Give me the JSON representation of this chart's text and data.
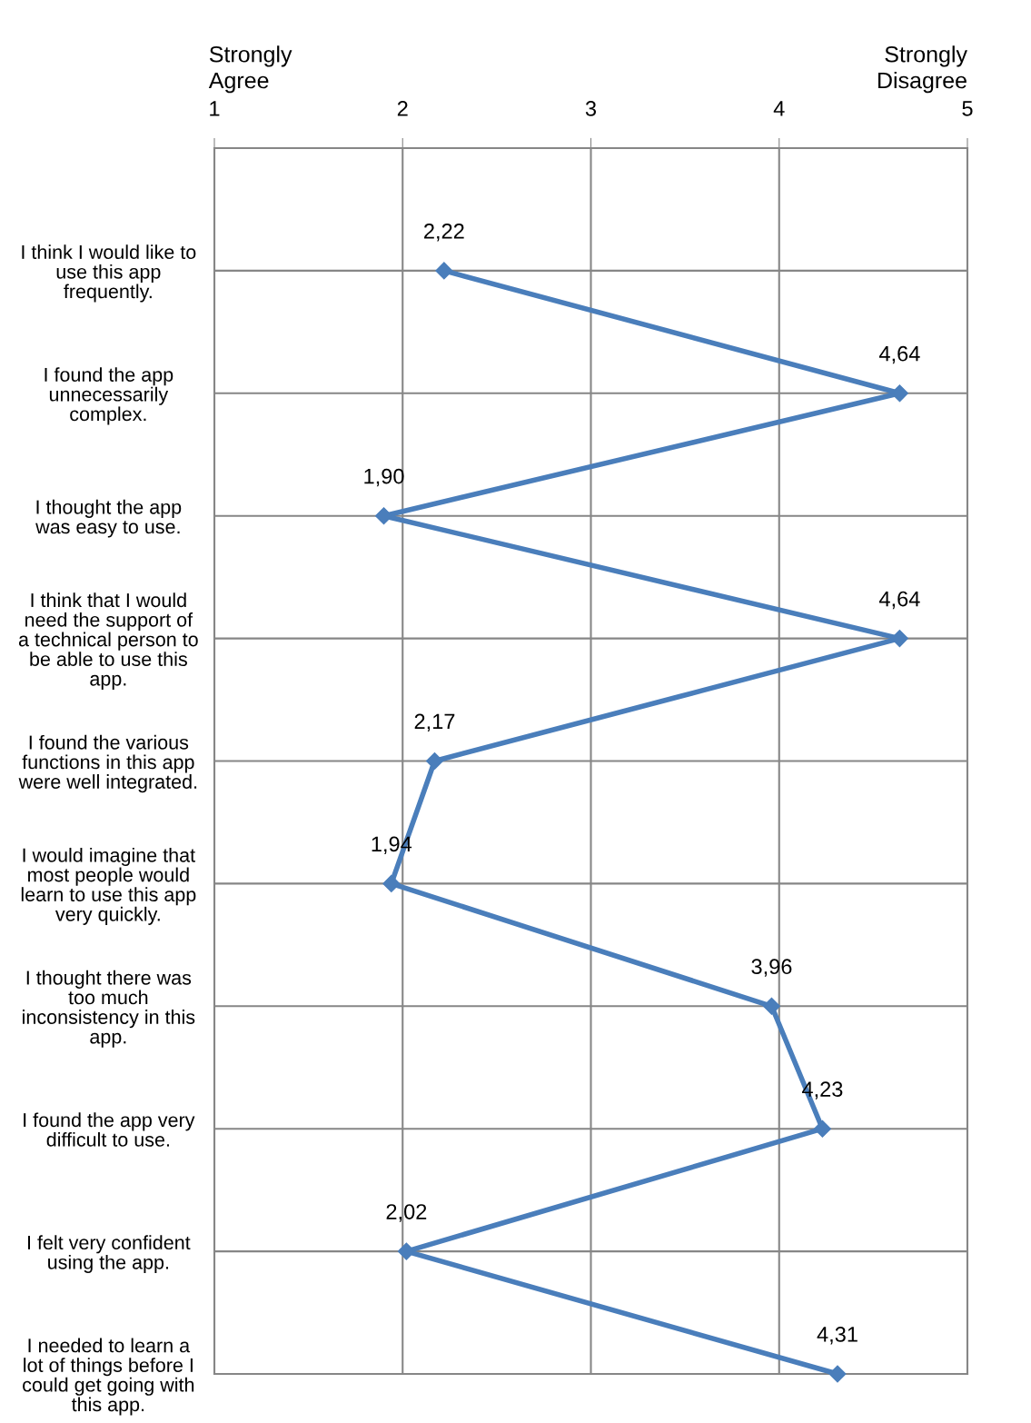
{
  "chart_data": {
    "type": "line",
    "orientation": "horizontal",
    "categories": [
      "I think I would like to\nuse this app\nfrequently.",
      "I found the app\nunnecessarily\ncomplex.",
      "I thought the app\nwas easy to use.",
      "I think that I would\nneed the support of\na technical person to\nbe able to use this\napp.",
      "I found the various\nfunctions in this app\nwere well integrated.",
      "I would imagine that\nmost people would\nlearn to use this app\nvery quickly.",
      "I thought there was\ntoo much\ninconsistency in this\napp.",
      "I found the app very\ndifficult to use.",
      "I felt very confident\nusing the app.",
      "I needed to learn a\nlot of things before I\ncould get going with\nthis app."
    ],
    "series": [
      {
        "color": "#4a7ebb",
        "values": [
          2.22,
          4.64,
          1.9,
          4.64,
          2.17,
          1.94,
          3.96,
          4.23,
          2.02,
          4.31
        ],
        "value_labels": [
          "2,22",
          "4,64",
          "1,90",
          "4,64",
          "2,17",
          "1,94",
          "3,96",
          "4,23",
          "2,02",
          "4,31"
        ]
      }
    ],
    "annotations": [
      "Strongly\nAgree",
      "Strongly\nDisagree"
    ],
    "xlim": [
      1,
      5
    ],
    "xticks": [
      1,
      2,
      3,
      4,
      5
    ],
    "grid": true,
    "marker": "diamond",
    "line_style": "solid",
    "legend": false
  }
}
